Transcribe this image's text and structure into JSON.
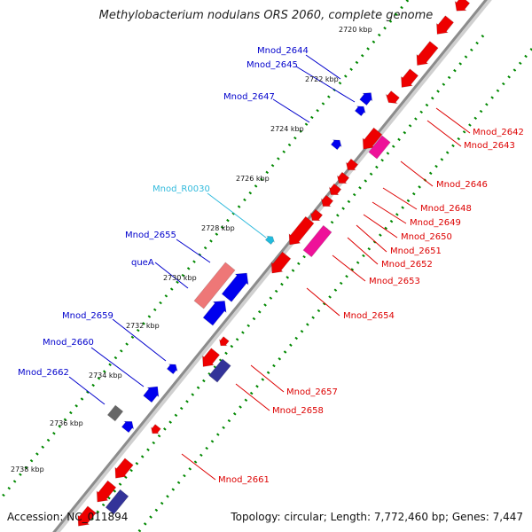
{
  "title": "Methylobacterium nodulans ORS 2060, complete genome",
  "footer": {
    "accession": "Accession: NC_011894",
    "summary": "Topology: circular; Length: 7,772,460 bp; Genes: 7,447"
  },
  "colors": {
    "background": "#ffffff",
    "backbone": "#8c8c8c",
    "forward_gene": "#0000ee",
    "reverse_gene": "#ee0000",
    "pseudo_reverse": "#ee1199",
    "pseudo_forward": "#ee7777",
    "forward_dark": "#333399",
    "rna": "#22bbdd",
    "tick_dots": "#008800",
    "gray_feature": "#666666"
  },
  "ticks": [
    "2720 kbp",
    "2722 kbp",
    "2724 kbp",
    "2726 kbp",
    "2728 kbp",
    "2730 kbp",
    "2732 kbp",
    "2734 kbp",
    "2736 kbp",
    "2738 kbp"
  ],
  "labels_left": [
    {
      "text": "Mnod_2644",
      "color": "#0000cc"
    },
    {
      "text": "Mnod_2645",
      "color": "#0000cc"
    },
    {
      "text": "Mnod_2647",
      "color": "#0000cc"
    },
    {
      "text": "Mnod_R0030",
      "color": "#33bbdd"
    },
    {
      "text": "Mnod_2655",
      "color": "#0000cc"
    },
    {
      "text": "queA",
      "color": "#0000cc"
    },
    {
      "text": "Mnod_2659",
      "color": "#0000cc"
    },
    {
      "text": "Mnod_2660",
      "color": "#0000cc"
    },
    {
      "text": "Mnod_2662",
      "color": "#0000cc"
    }
  ],
  "labels_right": [
    {
      "text": "Mnod_2642",
      "color": "#dd0000"
    },
    {
      "text": "Mnod_2643",
      "color": "#dd0000"
    },
    {
      "text": "Mnod_2646",
      "color": "#dd0000"
    },
    {
      "text": "Mnod_2648",
      "color": "#dd0000"
    },
    {
      "text": "Mnod_2649",
      "color": "#dd0000"
    },
    {
      "text": "Mnod_2650",
      "color": "#dd0000"
    },
    {
      "text": "Mnod_2651",
      "color": "#dd0000"
    },
    {
      "text": "Mnod_2652",
      "color": "#dd0000"
    },
    {
      "text": "Mnod_2653",
      "color": "#dd0000"
    },
    {
      "text": "Mnod_2654",
      "color": "#dd0000"
    },
    {
      "text": "Mnod_2657",
      "color": "#dd0000"
    },
    {
      "text": "Mnod_2658",
      "color": "#dd0000"
    },
    {
      "text": "Mnod_2661",
      "color": "#dd0000"
    }
  ]
}
